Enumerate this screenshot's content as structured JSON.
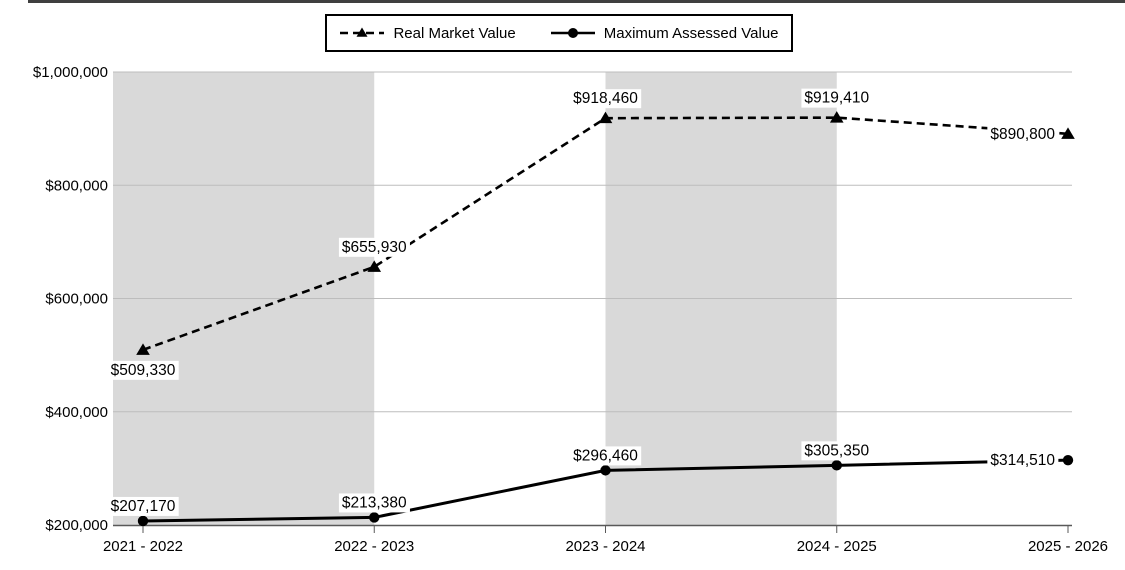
{
  "legend": {
    "items": [
      {
        "label": "Real Market Value",
        "marker": "triangle",
        "line": "dashed"
      },
      {
        "label": "Maximum Assessed Value",
        "marker": "circle",
        "line": "solid"
      }
    ]
  },
  "chart_data": {
    "type": "line",
    "title": "",
    "categories": [
      "2021 - 2022",
      "2022 - 2023",
      "2023 - 2024",
      "2024 - 2025",
      "2025 - 2026"
    ],
    "series": [
      {
        "name": "Real Market Value",
        "line": "dashed",
        "marker": "triangle",
        "values": [
          509330,
          655930,
          918460,
          919410,
          890800
        ],
        "data_labels": [
          "$509,330",
          "$655,930",
          "$918,460",
          "$919,410",
          "$890,800"
        ],
        "label_positions": [
          "below",
          "above",
          "above",
          "above",
          "left"
        ]
      },
      {
        "name": "Maximum Assessed Value",
        "line": "solid",
        "marker": "circle",
        "values": [
          207170,
          213380,
          296460,
          305350,
          314510
        ],
        "data_labels": [
          "$207,170",
          "$213,380",
          "$296,460",
          "$305,350",
          "$314,510"
        ],
        "label_positions": [
          "above",
          "above",
          "above",
          "above",
          "left"
        ]
      }
    ],
    "y_axis": {
      "min": 200000,
      "max": 1000000,
      "tick_interval": 200000,
      "tick_labels": [
        "$200,000",
        "$400,000",
        "$600,000",
        "$800,000",
        "$1,000,000"
      ]
    },
    "grid": "horizontal",
    "legend_position": "top",
    "shaded_column_bands": [
      [
        0,
        1
      ],
      [
        2,
        3
      ]
    ],
    "colors": {
      "series": "#000000",
      "band": "#d9d9d9",
      "gridline": "#bdbdbd",
      "axis": "#595959",
      "background": "#ffffff",
      "label_background": "#ffffff"
    }
  }
}
